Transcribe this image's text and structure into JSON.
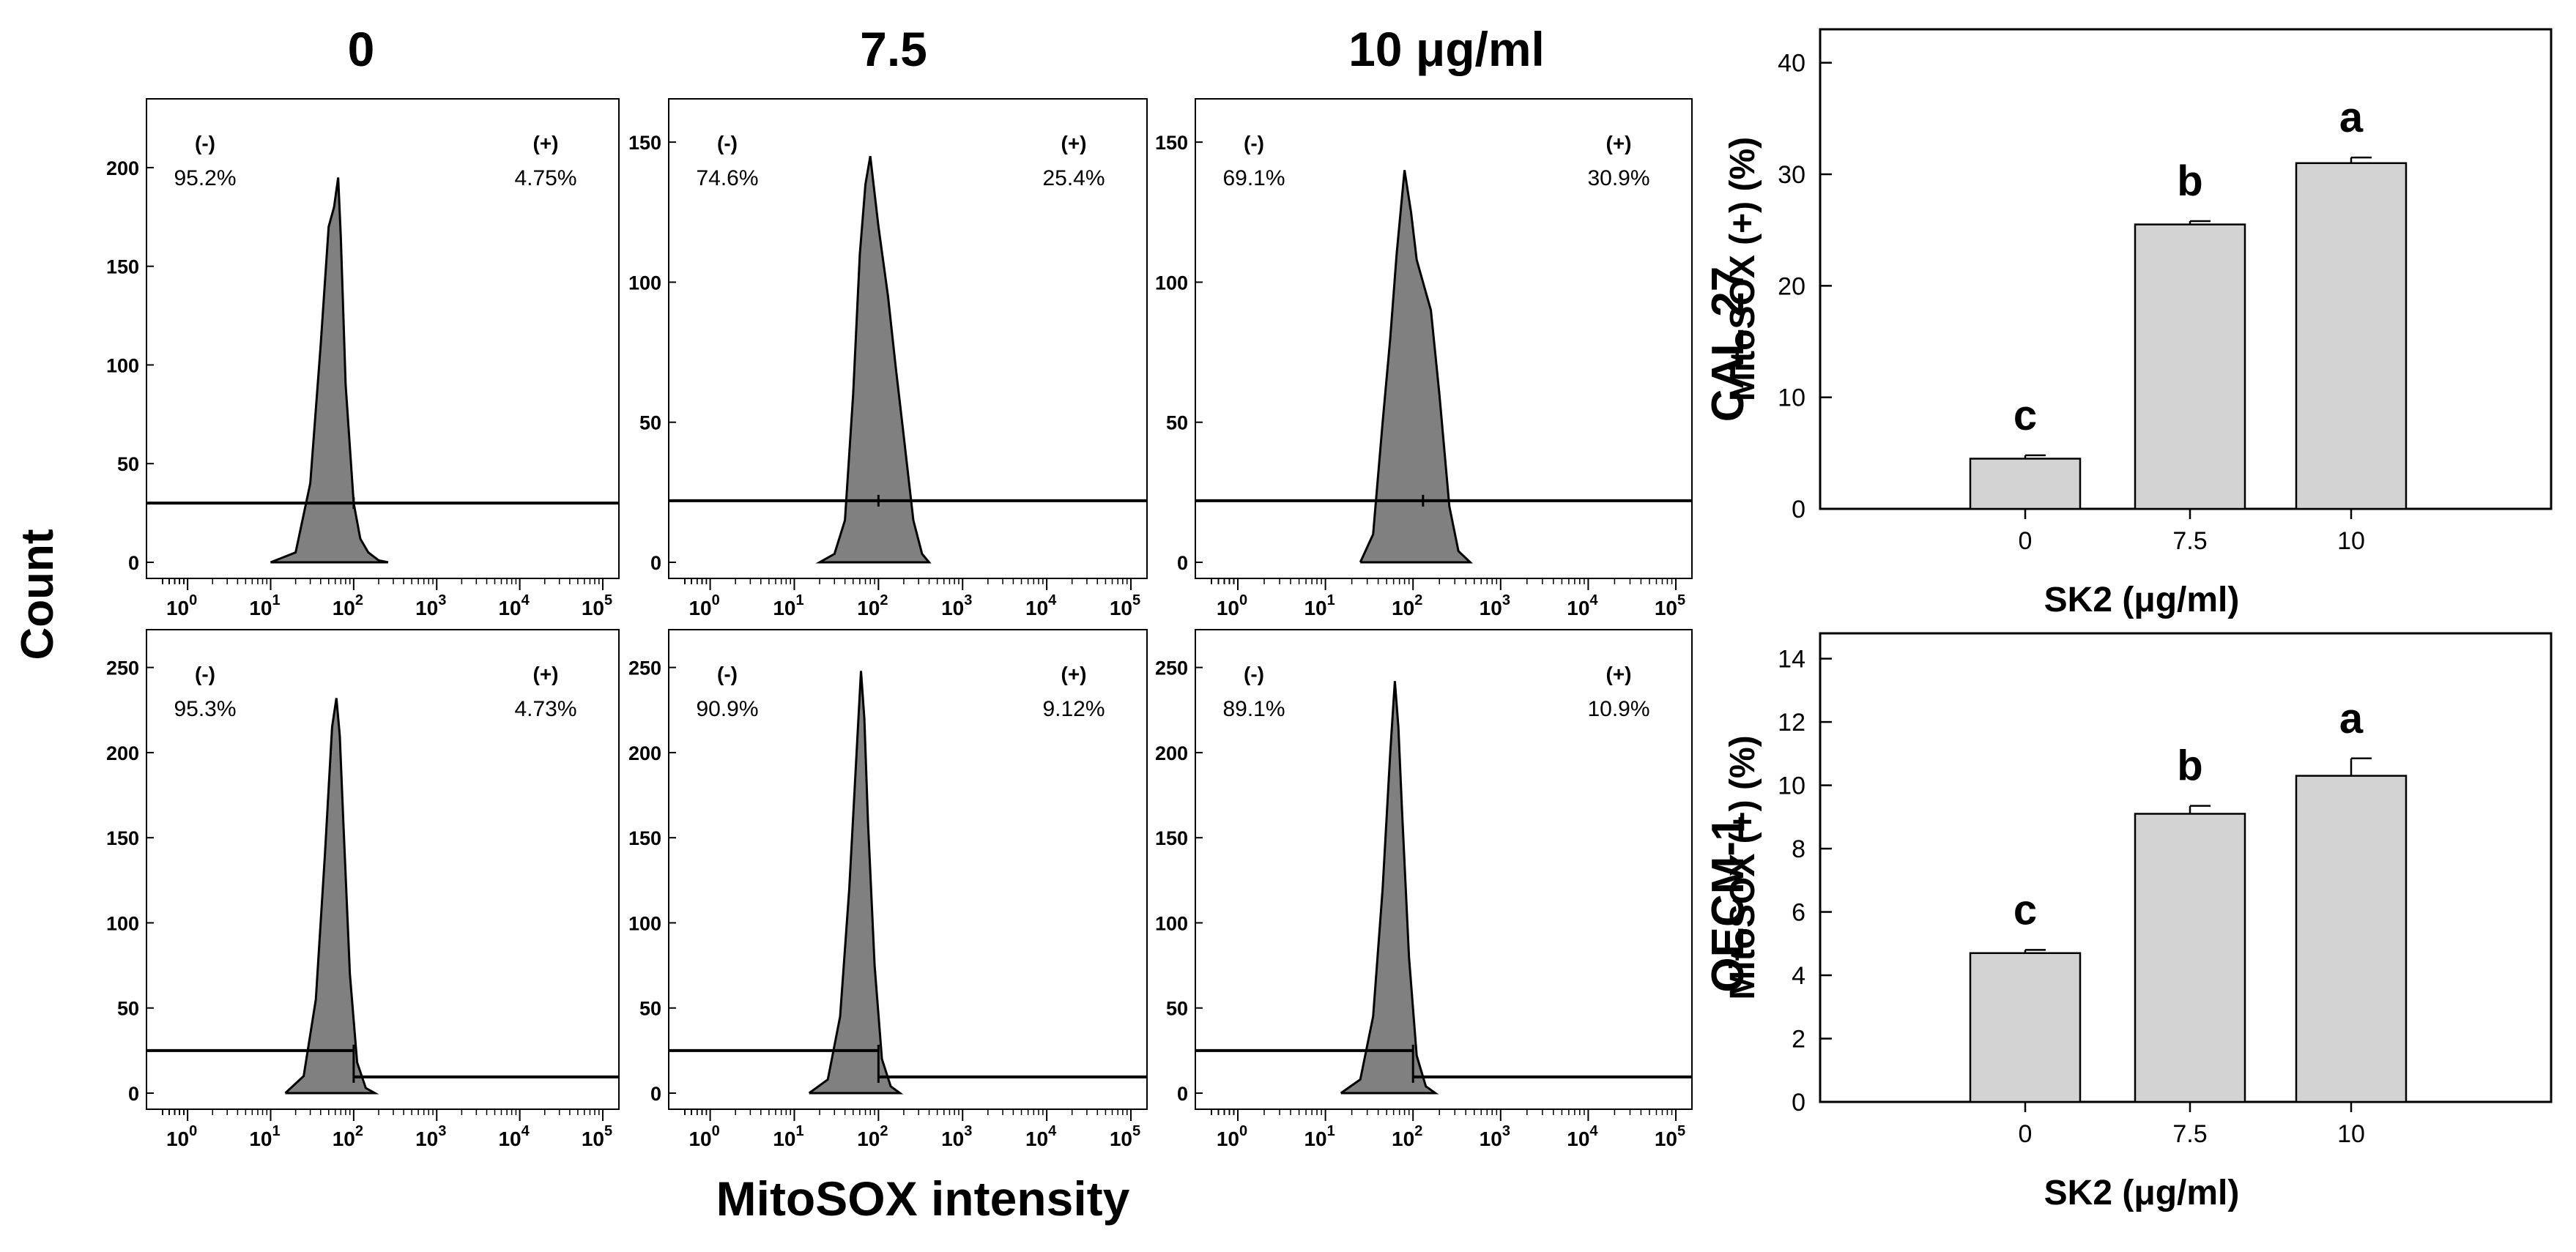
{
  "figure": {
    "column_headers": [
      "0",
      "7.5",
      "10 μg/ml"
    ],
    "histogram_ylabel": "Count",
    "histogram_xlabel": "MitoSOX intensity",
    "row_labels": [
      "CAL 27",
      "OECM-1"
    ],
    "histogram_fill": "#808080",
    "bar_fill": "#d3d3d3"
  },
  "chart_data": [
    {
      "type": "area",
      "row": "CAL 27",
      "dose": "0",
      "x_scale": "log",
      "xlim": [
        0.5,
        100000
      ],
      "ylim": [
        0,
        220
      ],
      "y_ticks": [
        0,
        50,
        100,
        150,
        200
      ],
      "x_tick_exponents": [
        0,
        1,
        2,
        3,
        4,
        5
      ],
      "gate_y": 30,
      "gate_split": 100,
      "negative_label": "(-)",
      "positive_label": "(+)",
      "negative_pct": "95.2%",
      "positive_pct": "4.75%",
      "x": [
        10,
        20,
        30,
        40,
        50,
        58,
        65,
        70,
        80,
        100,
        120,
        150,
        200,
        260
      ],
      "y": [
        0,
        5,
        40,
        110,
        170,
        180,
        195,
        165,
        90,
        30,
        12,
        5,
        1,
        0
      ]
    },
    {
      "type": "area",
      "row": "CAL 27",
      "dose": "7.5",
      "x_scale": "log",
      "xlim": [
        0.5,
        100000
      ],
      "ylim": [
        0,
        155
      ],
      "y_ticks": [
        0,
        50,
        100,
        150
      ],
      "x_tick_exponents": [
        0,
        1,
        2,
        3,
        4,
        5
      ],
      "gate_y": 22,
      "gate_split": 100,
      "negative_label": "(-)",
      "positive_label": "(+)",
      "negative_pct": "74.6%",
      "positive_pct": "25.4%",
      "x": [
        20,
        30,
        40,
        50,
        60,
        70,
        80,
        100,
        130,
        160,
        200,
        260,
        330,
        400
      ],
      "y": [
        0,
        3,
        15,
        60,
        110,
        135,
        145,
        120,
        95,
        70,
        45,
        15,
        3,
        0
      ]
    },
    {
      "type": "area",
      "row": "CAL 27",
      "dose": "10",
      "x_scale": "log",
      "xlim": [
        0.5,
        100000
      ],
      "ylim": [
        0,
        155
      ],
      "y_ticks": [
        0,
        50,
        100,
        150
      ],
      "x_tick_exponents": [
        0,
        1,
        2,
        3,
        4,
        5
      ],
      "gate_y": 22,
      "gate_split": 130,
      "negative_label": "(-)",
      "positive_label": "(+)",
      "negative_pct": "69.1%",
      "positive_pct": "30.9%",
      "x": [
        25,
        35,
        45,
        55,
        65,
        80,
        95,
        110,
        130,
        160,
        200,
        260,
        330,
        450
      ],
      "y": [
        0,
        10,
        50,
        80,
        110,
        140,
        125,
        108,
        100,
        90,
        60,
        20,
        4,
        0
      ]
    },
    {
      "type": "area",
      "row": "OECM-1",
      "dose": "0",
      "x_scale": "log",
      "xlim": [
        0.5,
        100000
      ],
      "ylim": [
        0,
        255
      ],
      "y_ticks": [
        0,
        50,
        100,
        150,
        200,
        250
      ],
      "x_tick_exponents": [
        0,
        1,
        2,
        3,
        4,
        5
      ],
      "gate_y": 25,
      "gate_split": 100,
      "negative_label": "(-)",
      "positive_label": "(+)",
      "negative_pct": "95.3%",
      "positive_pct": "4.73%",
      "x": [
        15,
        25,
        35,
        45,
        55,
        62,
        68,
        75,
        90,
        110,
        140,
        180
      ],
      "y": [
        0,
        10,
        55,
        140,
        215,
        232,
        210,
        160,
        70,
        18,
        3,
        0
      ]
    },
    {
      "type": "area",
      "row": "OECM-1",
      "dose": "7.5",
      "x_scale": "log",
      "xlim": [
        0.5,
        100000
      ],
      "ylim": [
        0,
        255
      ],
      "y_ticks": [
        0,
        50,
        100,
        150,
        200,
        250
      ],
      "x_tick_exponents": [
        0,
        1,
        2,
        3,
        4,
        5
      ],
      "gate_y": 25,
      "gate_split": 100,
      "negative_label": "(-)",
      "positive_label": "(+)",
      "negative_pct": "90.9%",
      "positive_pct": "9.12%",
      "x": [
        15,
        25,
        35,
        45,
        55,
        62,
        68,
        75,
        90,
        110,
        140,
        180
      ],
      "y": [
        0,
        8,
        45,
        120,
        200,
        248,
        220,
        160,
        75,
        20,
        4,
        0
      ]
    },
    {
      "type": "area",
      "row": "OECM-1",
      "dose": "10",
      "x_scale": "log",
      "xlim": [
        0.5,
        100000
      ],
      "ylim": [
        0,
        255
      ],
      "y_ticks": [
        0,
        50,
        100,
        150,
        200,
        250
      ],
      "x_tick_exponents": [
        0,
        1,
        2,
        3,
        4,
        5
      ],
      "gate_y": 25,
      "gate_split": 100,
      "negative_label": "(-)",
      "positive_label": "(+)",
      "negative_pct": "89.1%",
      "positive_pct": "10.9%",
      "x": [
        15,
        25,
        35,
        45,
        55,
        62,
        68,
        75,
        90,
        110,
        140,
        180
      ],
      "y": [
        0,
        8,
        45,
        120,
        200,
        242,
        215,
        165,
        80,
        22,
        4,
        0
      ]
    },
    {
      "type": "bar",
      "row": "CAL 27",
      "categories": [
        "0",
        "7.5",
        "10"
      ],
      "values": [
        4.5,
        25.5,
        31.0
      ],
      "errors": [
        0.3,
        0.3,
        0.5
      ],
      "significance": [
        "c",
        "b",
        "a"
      ],
      "xlabel": "SK2 (μg/ml)",
      "ylabel": "MitoSOX (+) (%)",
      "ylim": [
        0,
        43
      ],
      "y_ticks": [
        0,
        10,
        20,
        30,
        40
      ]
    },
    {
      "type": "bar",
      "row": "OECM-1",
      "categories": [
        "0",
        "7.5",
        "10"
      ],
      "values": [
        4.7,
        9.1,
        10.3
      ],
      "errors": [
        0.1,
        0.25,
        0.55
      ],
      "significance": [
        "c",
        "b",
        "a"
      ],
      "xlabel": "SK2 (μg/ml)",
      "ylabel": "MitoSOX (+) (%)",
      "ylim": [
        0,
        14.8
      ],
      "y_ticks": [
        0,
        2,
        4,
        6,
        8,
        10,
        12,
        14
      ]
    }
  ]
}
